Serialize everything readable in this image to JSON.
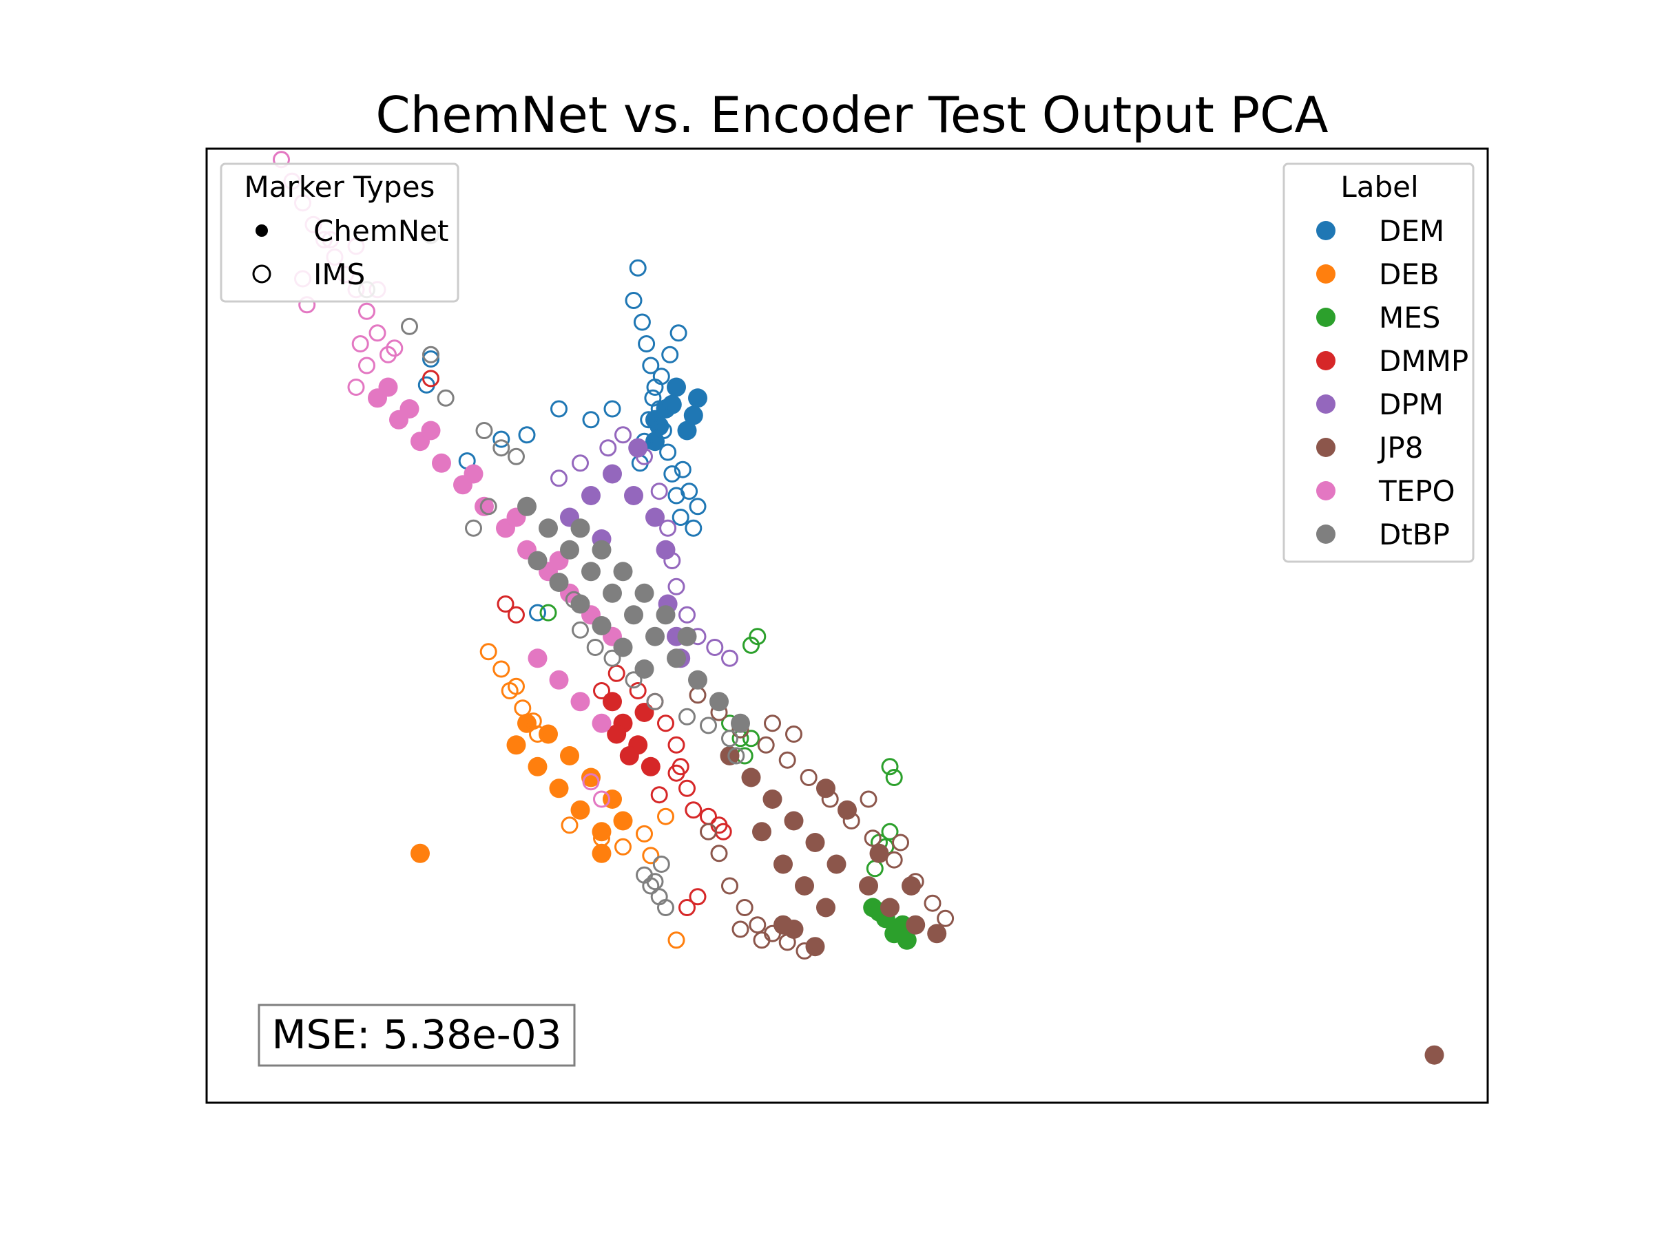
{
  "chart_data": {
    "type": "scatter",
    "title": "ChemNet vs. Encoder Test Output PCA",
    "xlabel": "",
    "ylabel": "",
    "axes_visible": false,
    "grid": false,
    "xlim": [
      -3.0,
      3.0
    ],
    "ylim": [
      -2.2,
      2.2
    ],
    "marker_legend": {
      "title": "Marker Types",
      "position": "upper-left",
      "entries": [
        {
          "label": "ChemNet",
          "marker": "filled-circle"
        },
        {
          "label": "IMS",
          "marker": "open-circle"
        }
      ]
    },
    "label_legend": {
      "title": "Label",
      "position": "upper-right"
    },
    "annotation": {
      "text": "MSE: 5.38e-03",
      "position": "lower-left"
    },
    "series": [
      {
        "name": "DEM",
        "color": "#1f77b4",
        "chemnet": [
          [
            -0.9,
            0.85
          ],
          [
            -0.85,
            1.0
          ],
          [
            -0.8,
            1.1
          ],
          [
            -0.9,
            0.95
          ],
          [
            -0.7,
            1.05
          ],
          [
            -0.75,
            0.9
          ],
          [
            -0.82,
            1.02
          ],
          [
            -0.88,
            0.92
          ],
          [
            -0.72,
            0.97
          ]
        ],
        "ims": [
          [
            -1.0,
            1.5
          ],
          [
            -0.98,
            1.65
          ],
          [
            -0.96,
            1.4
          ],
          [
            -0.94,
            1.3
          ],
          [
            -0.92,
            1.2
          ],
          [
            -0.9,
            1.1
          ],
          [
            -0.88,
            1.0
          ],
          [
            -0.86,
            0.9
          ],
          [
            -0.84,
            0.8
          ],
          [
            -0.82,
            0.7
          ],
          [
            -0.8,
            0.6
          ],
          [
            -0.78,
            0.5
          ],
          [
            -1.1,
            1.0
          ],
          [
            -1.2,
            0.95
          ],
          [
            -1.35,
            1.0
          ],
          [
            -1.5,
            0.88
          ],
          [
            -1.62,
            0.86
          ],
          [
            -1.78,
            0.76
          ],
          [
            -1.95,
            1.23
          ],
          [
            -1.97,
            1.11
          ],
          [
            -1.45,
            0.06
          ],
          [
            -0.72,
            0.45
          ],
          [
            -0.7,
            0.55
          ],
          [
            -0.74,
            0.62
          ],
          [
            -0.77,
            0.72
          ],
          [
            -0.79,
            1.35
          ],
          [
            -0.83,
            1.25
          ],
          [
            -0.87,
            1.15
          ],
          [
            -0.91,
            1.05
          ],
          [
            -0.93,
            0.95
          ],
          [
            -0.95,
            0.85
          ],
          [
            -0.97,
            0.75
          ]
        ]
      },
      {
        "name": "DEB",
        "color": "#ff7f0e",
        "chemnet": [
          [
            -1.55,
            -0.55
          ],
          [
            -1.45,
            -0.65
          ],
          [
            -1.35,
            -0.75
          ],
          [
            -1.25,
            -0.85
          ],
          [
            -1.15,
            -0.95
          ],
          [
            -1.3,
            -0.6
          ],
          [
            -1.2,
            -0.7
          ],
          [
            -1.1,
            -0.8
          ],
          [
            -1.4,
            -0.5
          ],
          [
            -1.5,
            -0.45
          ],
          [
            -1.05,
            -0.9
          ],
          [
            -1.15,
            -1.05
          ],
          [
            -2.0,
            -1.05
          ]
        ],
        "ims": [
          [
            -1.68,
            -0.12
          ],
          [
            -1.62,
            -0.2
          ],
          [
            -1.58,
            -0.3
          ],
          [
            -1.52,
            -0.38
          ],
          [
            -1.47,
            -0.44
          ],
          [
            -1.55,
            -0.28
          ],
          [
            -1.45,
            -0.5
          ],
          [
            -1.05,
            -1.02
          ],
          [
            -0.95,
            -0.96
          ],
          [
            -0.85,
            -0.88
          ],
          [
            -0.92,
            -1.06
          ],
          [
            -0.8,
            -1.45
          ],
          [
            -1.15,
            -0.98
          ],
          [
            -1.3,
            -0.92
          ]
        ]
      },
      {
        "name": "MES",
        "color": "#2ca02c",
        "chemnet": [
          [
            0.12,
            -1.3
          ],
          [
            0.18,
            -1.35
          ],
          [
            0.28,
            -1.45
          ],
          [
            0.22,
            -1.42
          ],
          [
            0.15,
            -1.32
          ],
          [
            0.26,
            -1.38
          ]
        ],
        "ims": [
          [
            -0.55,
            -0.45
          ],
          [
            -0.5,
            -0.52
          ],
          [
            -0.48,
            -0.6
          ],
          [
            0.2,
            -0.65
          ],
          [
            0.22,
            -0.7
          ],
          [
            0.2,
            -0.95
          ],
          [
            0.18,
            -1.02
          ],
          [
            0.15,
            -1.0
          ],
          [
            0.13,
            -1.12
          ],
          [
            -0.42,
            -0.05
          ],
          [
            -0.45,
            -0.09
          ],
          [
            -0.5,
            -0.48
          ],
          [
            -0.45,
            -0.52
          ],
          [
            -1.4,
            0.06
          ]
        ]
      },
      {
        "name": "DMMP",
        "color": "#d62728",
        "chemnet": [
          [
            -1.1,
            -0.35
          ],
          [
            -1.05,
            -0.45
          ],
          [
            -0.98,
            -0.55
          ],
          [
            -0.92,
            -0.65
          ],
          [
            -1.02,
            -0.6
          ],
          [
            -0.95,
            -0.4
          ],
          [
            -1.08,
            -0.5
          ]
        ],
        "ims": [
          [
            -1.15,
            -0.3
          ],
          [
            -1.08,
            -0.22
          ],
          [
            -0.98,
            -0.3
          ],
          [
            -0.9,
            -0.35
          ],
          [
            -0.85,
            -0.45
          ],
          [
            -0.8,
            -0.55
          ],
          [
            -0.78,
            -0.65
          ],
          [
            -0.75,
            -0.75
          ],
          [
            -0.72,
            -0.85
          ],
          [
            -0.65,
            -0.88
          ],
          [
            -0.6,
            -0.92
          ],
          [
            -0.58,
            -0.95
          ],
          [
            -0.7,
            -1.25
          ],
          [
            -0.75,
            -1.3
          ],
          [
            -1.6,
            0.1
          ],
          [
            -1.55,
            0.05
          ],
          [
            -1.95,
            1.14
          ],
          [
            -0.8,
            -0.68
          ],
          [
            -0.88,
            -0.78
          ]
        ]
      },
      {
        "name": "DPM",
        "color": "#9467bd",
        "chemnet": [
          [
            -1.2,
            0.6
          ],
          [
            -1.1,
            0.7
          ],
          [
            -1.0,
            0.6
          ],
          [
            -1.3,
            0.5
          ],
          [
            -0.9,
            0.5
          ],
          [
            -0.85,
            0.35
          ],
          [
            -1.15,
            0.4
          ],
          [
            -0.98,
            0.82
          ],
          [
            -0.84,
            0.1
          ],
          [
            -0.8,
            -0.05
          ],
          [
            -0.78,
            -0.15
          ]
        ],
        "ims": [
          [
            -1.35,
            0.68
          ],
          [
            -1.25,
            0.75
          ],
          [
            -1.12,
            0.82
          ],
          [
            -1.05,
            0.88
          ],
          [
            -0.95,
            0.78
          ],
          [
            -0.88,
            0.62
          ],
          [
            -0.84,
            0.45
          ],
          [
            -0.82,
            0.3
          ],
          [
            -0.8,
            0.18
          ],
          [
            -0.75,
            0.05
          ],
          [
            -0.7,
            -0.05
          ],
          [
            -0.62,
            -0.1
          ],
          [
            -0.55,
            -0.15
          ]
        ]
      },
      {
        "name": "JP8",
        "color": "#8c564b",
        "chemnet": [
          [
            -0.55,
            -0.6
          ],
          [
            -0.45,
            -0.7
          ],
          [
            -0.35,
            -0.8
          ],
          [
            -0.25,
            -0.9
          ],
          [
            -0.15,
            -1.0
          ],
          [
            -0.05,
            -1.1
          ],
          [
            0.1,
            -1.2
          ],
          [
            0.2,
            -1.3
          ],
          [
            0.32,
            -1.38
          ],
          [
            0.42,
            -1.42
          ],
          [
            -0.4,
            -0.95
          ],
          [
            -0.3,
            -1.1
          ],
          [
            -0.2,
            -1.2
          ],
          [
            -0.1,
            -1.3
          ],
          [
            -0.25,
            -1.4
          ],
          [
            -0.15,
            -1.48
          ],
          [
            -0.3,
            -1.38
          ],
          [
            0.0,
            -0.85
          ],
          [
            -0.1,
            -0.75
          ],
          [
            0.15,
            -1.05
          ],
          [
            0.3,
            -1.2
          ],
          [
            2.75,
            -1.98
          ]
        ],
        "ims": [
          [
            -0.7,
            -0.32
          ],
          [
            -0.6,
            -0.4
          ],
          [
            -0.5,
            -0.48
          ],
          [
            -0.38,
            -0.55
          ],
          [
            -0.28,
            -0.62
          ],
          [
            -0.18,
            -0.7
          ],
          [
            -0.08,
            -0.8
          ],
          [
            0.02,
            -0.9
          ],
          [
            0.12,
            -0.98
          ],
          [
            0.22,
            -1.08
          ],
          [
            0.32,
            -1.18
          ],
          [
            0.4,
            -1.28
          ],
          [
            0.46,
            -1.35
          ],
          [
            -0.55,
            -1.2
          ],
          [
            -0.48,
            -1.3
          ],
          [
            -0.42,
            -1.38
          ],
          [
            -0.35,
            -1.42
          ],
          [
            -0.28,
            -1.46
          ],
          [
            -0.2,
            -1.5
          ],
          [
            -0.6,
            -1.05
          ],
          [
            -0.65,
            -0.95
          ],
          [
            -0.35,
            -0.45
          ],
          [
            -0.25,
            -0.5
          ],
          [
            0.1,
            -0.8
          ],
          [
            0.25,
            -1.0
          ],
          [
            -0.5,
            -1.4
          ],
          [
            -0.4,
            -1.45
          ]
        ]
      },
      {
        "name": "TEPO",
        "color": "#e377c2",
        "chemnet": [
          [
            -2.2,
            1.05
          ],
          [
            -2.1,
            0.95
          ],
          [
            -2.0,
            0.85
          ],
          [
            -1.9,
            0.75
          ],
          [
            -1.8,
            0.65
          ],
          [
            -1.7,
            0.55
          ],
          [
            -1.6,
            0.45
          ],
          [
            -1.5,
            0.35
          ],
          [
            -1.4,
            0.25
          ],
          [
            -1.3,
            0.15
          ],
          [
            -1.2,
            0.05
          ],
          [
            -1.1,
            -0.05
          ],
          [
            -1.45,
            -0.15
          ],
          [
            -1.35,
            -0.25
          ],
          [
            -1.25,
            -0.35
          ],
          [
            -1.15,
            -0.45
          ],
          [
            -2.15,
            1.1
          ],
          [
            -2.05,
            1.0
          ],
          [
            -1.95,
            0.9
          ],
          [
            -1.75,
            0.7
          ],
          [
            -1.55,
            0.5
          ],
          [
            -1.35,
            0.3
          ]
        ],
        "ims": [
          [
            -2.65,
            2.15
          ],
          [
            -2.6,
            2.05
          ],
          [
            -2.55,
            1.95
          ],
          [
            -2.5,
            1.85
          ],
          [
            -2.45,
            1.78
          ],
          [
            -2.4,
            1.7
          ],
          [
            -2.35,
            1.62
          ],
          [
            -2.3,
            1.55
          ],
          [
            -2.25,
            1.45
          ],
          [
            -2.2,
            1.35
          ],
          [
            -2.15,
            1.25
          ],
          [
            -2.55,
            1.6
          ],
          [
            -2.53,
            1.48
          ],
          [
            -2.42,
            1.78
          ],
          [
            -2.3,
            1.75
          ],
          [
            -2.2,
            1.55
          ],
          [
            -2.12,
            1.28
          ],
          [
            -2.28,
            1.3
          ],
          [
            -2.25,
            1.2
          ],
          [
            -2.3,
            1.1
          ],
          [
            -1.2,
            -0.72
          ],
          [
            -1.15,
            -0.8
          ]
        ]
      },
      {
        "name": "DtBP",
        "color": "#7f7f7f",
        "chemnet": [
          [
            -1.5,
            0.55
          ],
          [
            -1.4,
            0.45
          ],
          [
            -1.3,
            0.35
          ],
          [
            -1.2,
            0.25
          ],
          [
            -1.1,
            0.15
          ],
          [
            -1.0,
            0.05
          ],
          [
            -0.9,
            -0.05
          ],
          [
            -0.8,
            -0.15
          ],
          [
            -0.7,
            -0.25
          ],
          [
            -0.6,
            -0.35
          ],
          [
            -0.5,
            -0.45
          ],
          [
            -1.45,
            0.3
          ],
          [
            -1.35,
            0.2
          ],
          [
            -1.25,
            0.1
          ],
          [
            -1.15,
            0.0
          ],
          [
            -1.05,
            -0.1
          ],
          [
            -0.95,
            -0.2
          ],
          [
            -1.25,
            0.45
          ],
          [
            -1.15,
            0.35
          ],
          [
            -1.05,
            0.25
          ],
          [
            -0.95,
            0.15
          ],
          [
            -0.85,
            0.05
          ],
          [
            -0.75,
            -0.05
          ]
        ],
        "ims": [
          [
            -1.95,
            1.8
          ],
          [
            -2.25,
            1.55
          ],
          [
            -2.05,
            1.38
          ],
          [
            -1.95,
            1.25
          ],
          [
            -1.88,
            1.05
          ],
          [
            -1.7,
            0.9
          ],
          [
            -1.62,
            0.82
          ],
          [
            -1.55,
            0.78
          ],
          [
            -1.68,
            0.55
          ],
          [
            -1.75,
            0.45
          ],
          [
            -1.25,
            -0.02
          ],
          [
            -1.18,
            -0.1
          ],
          [
            -1.1,
            -0.15
          ],
          [
            -1.0,
            -0.25
          ],
          [
            -0.9,
            -0.35
          ],
          [
            -0.75,
            -0.42
          ],
          [
            -0.65,
            -0.46
          ],
          [
            -0.55,
            -0.52
          ],
          [
            -0.52,
            -0.6
          ],
          [
            -1.28,
            0.12
          ],
          [
            -0.95,
            -1.15
          ],
          [
            -0.92,
            -1.2
          ],
          [
            -0.88,
            -1.25
          ],
          [
            -0.85,
            -1.3
          ],
          [
            -0.87,
            -1.1
          ],
          [
            -0.9,
            -1.18
          ]
        ]
      }
    ]
  }
}
